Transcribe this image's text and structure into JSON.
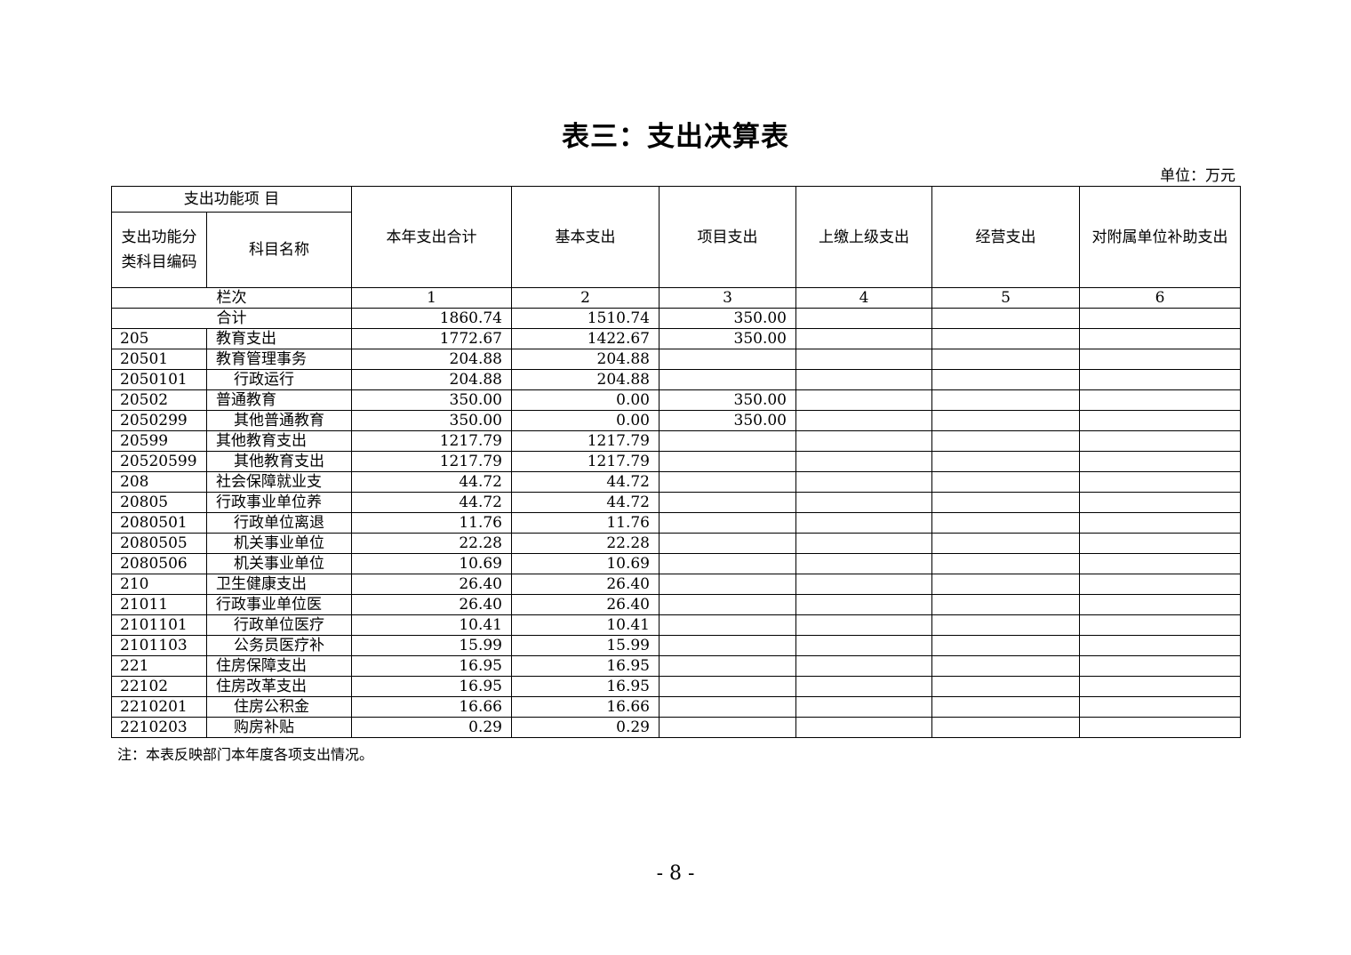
{
  "title": "表三：支出决算表",
  "unit": "单位：万元",
  "header": {
    "group": "支出功能项 目",
    "code": "支出功能分类科目编码",
    "name": "科目名称",
    "columns": [
      "本年支出合计",
      "基本支出",
      "项目支出",
      "上缴上级支出",
      "经营支出",
      "对附属单位补助支出"
    ]
  },
  "column_index": {
    "label": "栏次",
    "values": [
      "1",
      "2",
      "3",
      "4",
      "5",
      "6"
    ]
  },
  "total": {
    "label": "合计",
    "values": [
      "1860.74",
      "1510.74",
      "350.00",
      "",
      "",
      ""
    ]
  },
  "rows": [
    {
      "code": "205",
      "name": "教育支出",
      "indent": false,
      "values": [
        "1772.67",
        "1422.67",
        "350.00",
        "",
        "",
        ""
      ]
    },
    {
      "code": "20501",
      "name": "教育管理事务",
      "indent": false,
      "values": [
        "204.88",
        "204.88",
        "",
        "",
        "",
        ""
      ]
    },
    {
      "code": "2050101",
      "name": "行政运行",
      "indent": true,
      "values": [
        "204.88",
        "204.88",
        "",
        "",
        "",
        ""
      ]
    },
    {
      "code": "20502",
      "name": "普通教育",
      "indent": false,
      "values": [
        "350.00",
        "0.00",
        "350.00",
        "",
        "",
        ""
      ]
    },
    {
      "code": "2050299",
      "name": "其他普通教育",
      "indent": true,
      "values": [
        "350.00",
        "0.00",
        "350.00",
        "",
        "",
        ""
      ]
    },
    {
      "code": "20599",
      "name": "其他教育支出",
      "indent": false,
      "values": [
        "1217.79",
        "1217.79",
        "",
        "",
        "",
        ""
      ]
    },
    {
      "code": "20520599",
      "name": "其他教育支出",
      "indent": true,
      "values": [
        "1217.79",
        "1217.79",
        "",
        "",
        "",
        ""
      ]
    },
    {
      "code": "208",
      "name": "社会保障就业支",
      "indent": false,
      "values": [
        "44.72",
        "44.72",
        "",
        "",
        "",
        ""
      ]
    },
    {
      "code": "20805",
      "name": "行政事业单位养",
      "indent": false,
      "values": [
        "44.72",
        "44.72",
        "",
        "",
        "",
        ""
      ]
    },
    {
      "code": "2080501",
      "name": "行政单位离退",
      "indent": true,
      "values": [
        "11.76",
        "11.76",
        "",
        "",
        "",
        ""
      ]
    },
    {
      "code": "2080505",
      "name": "机关事业单位",
      "indent": true,
      "values": [
        "22.28",
        "22.28",
        "",
        "",
        "",
        ""
      ]
    },
    {
      "code": "2080506",
      "name": "机关事业单位",
      "indent": true,
      "values": [
        "10.69",
        "10.69",
        "",
        "",
        "",
        ""
      ]
    },
    {
      "code": "210",
      "name": "卫生健康支出",
      "indent": false,
      "values": [
        "26.40",
        "26.40",
        "",
        "",
        "",
        ""
      ]
    },
    {
      "code": "21011",
      "name": "行政事业单位医",
      "indent": false,
      "values": [
        "26.40",
        "26.40",
        "",
        "",
        "",
        ""
      ]
    },
    {
      "code": "2101101",
      "name": "行政单位医疗",
      "indent": true,
      "values": [
        "10.41",
        "10.41",
        "",
        "",
        "",
        ""
      ]
    },
    {
      "code": "2101103",
      "name": "公务员医疗补",
      "indent": true,
      "values": [
        "15.99",
        "15.99",
        "",
        "",
        "",
        ""
      ]
    },
    {
      "code": "221",
      "name": "住房保障支出",
      "indent": false,
      "values": [
        "16.95",
        "16.95",
        "",
        "",
        "",
        ""
      ]
    },
    {
      "code": "22102",
      "name": "住房改革支出",
      "indent": false,
      "values": [
        "16.95",
        "16.95",
        "",
        "",
        "",
        ""
      ]
    },
    {
      "code": "2210201",
      "name": "住房公积金",
      "indent": true,
      "values": [
        "16.66",
        "16.66",
        "",
        "",
        "",
        ""
      ]
    },
    {
      "code": "2210203",
      "name": "购房补贴",
      "indent": true,
      "values": [
        "0.29",
        "0.29",
        "",
        "",
        "",
        ""
      ]
    }
  ],
  "note": "注：本表反映部门本年度各项支出情况。",
  "page_number": "- 8 -"
}
